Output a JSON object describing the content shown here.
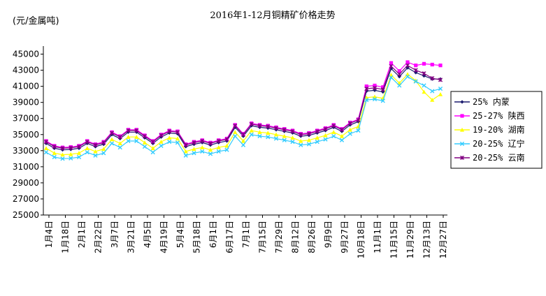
{
  "chart_data": {
    "type": "line",
    "title": "2016年1-12月铜精矿价格走势",
    "unit_label": "(元/金属吨)",
    "ylim": [
      25000,
      46000
    ],
    "yticks": [
      25000,
      27000,
      29000,
      31000,
      33000,
      35000,
      37000,
      39000,
      41000,
      43000,
      45000
    ],
    "ytick_labels": [
      "25000",
      "27000",
      "29000",
      "31000",
      "33000",
      "35000",
      "37000",
      "39000",
      "41000",
      "43000",
      "45000"
    ],
    "grid": false,
    "legend_position": "right",
    "x_tick_labels": [
      "1月4日",
      "1月18日",
      "2月1日",
      "2月22日",
      "3月7日",
      "3月21日",
      "4月5日",
      "4月19日",
      "5月4日",
      "5月18日",
      "6月1日",
      "6月17日",
      "7月1日",
      "7月15日",
      "7月29日",
      "8月12日",
      "8月26日",
      "9月9日",
      "9月27日",
      "10月18日",
      "11月1日",
      "11月15日",
      "11月29日",
      "12月13日",
      "12月27日"
    ],
    "base_values": [
      33900,
      33300,
      33100,
      33150,
      33300,
      33900,
      33500,
      33800,
      35000,
      34500,
      35300,
      35300,
      34600,
      33900,
      34700,
      35200,
      35100,
      33500,
      33800,
      34000,
      33700,
      34000,
      34200,
      35900,
      34800,
      36100,
      35900,
      35800,
      35600,
      35400,
      35200,
      34800,
      34900,
      35200,
      35500,
      35900,
      35400,
      36200,
      36600,
      40400,
      40500,
      40300,
      43200,
      42200,
      43300,
      42700,
      42300,
      41700,
      41500
    ],
    "series": [
      {
        "name": "25% 内蒙",
        "color": "#1a1a6e",
        "marker": "diamond",
        "offset": [
          0,
          0,
          0,
          0,
          0,
          0,
          0,
          0,
          0,
          0,
          0,
          0,
          0,
          0,
          0,
          0,
          0,
          0,
          0,
          0,
          0,
          0,
          0,
          0,
          0,
          0,
          0,
          0,
          0,
          0,
          0,
          0,
          0,
          0,
          0,
          0,
          0,
          0,
          0,
          0,
          0,
          0,
          0,
          0,
          0,
          0,
          0,
          200,
          400
        ]
      },
      {
        "name": "25-27% 陕西",
        "color": "#ff00ff",
        "marker": "square",
        "offset": [
          300,
          300,
          300,
          300,
          300,
          300,
          300,
          300,
          300,
          300,
          300,
          300,
          300,
          300,
          300,
          300,
          300,
          300,
          300,
          300,
          300,
          300,
          300,
          300,
          300,
          300,
          300,
          300,
          300,
          300,
          300,
          300,
          300,
          300,
          300,
          300,
          300,
          300,
          300,
          600,
          600,
          600,
          700,
          700,
          700,
          900,
          1500,
          2000,
          2100
        ]
      },
      {
        "name": "19-20% 湖南",
        "color": "#ffff00",
        "marker": "triangle",
        "offset": [
          -600,
          -600,
          -600,
          -600,
          -600,
          -600,
          -600,
          -600,
          -600,
          -600,
          -600,
          -600,
          -600,
          -600,
          -600,
          -600,
          -600,
          -600,
          -600,
          -600,
          -600,
          -600,
          -600,
          -600,
          -600,
          -600,
          -600,
          -600,
          -600,
          -600,
          -600,
          -600,
          -600,
          -600,
          -600,
          -600,
          -600,
          -600,
          -600,
          -800,
          -800,
          -800,
          -800,
          -800,
          -800,
          -1000,
          -2000,
          -2400,
          -1500
        ]
      },
      {
        "name": "20-25% 辽宁",
        "color": "#33ccff",
        "marker": "x",
        "offset": [
          -1100,
          -1100,
          -1100,
          -1100,
          -1100,
          -1100,
          -1100,
          -1100,
          -1100,
          -1100,
          -1100,
          -1100,
          -1100,
          -1100,
          -1100,
          -1100,
          -1100,
          -1100,
          -1100,
          -1100,
          -1100,
          -1100,
          -1100,
          -1100,
          -1100,
          -1100,
          -1100,
          -1100,
          -1100,
          -1100,
          -1100,
          -1100,
          -1100,
          -1100,
          -1100,
          -1100,
          -1100,
          -1100,
          -1100,
          -1100,
          -1100,
          -1100,
          -1100,
          -1100,
          -1100,
          -1100,
          -1200,
          -1300,
          -800
        ]
      },
      {
        "name": "20-25% 云南",
        "color": "#800080",
        "marker": "star",
        "offset": [
          200,
          200,
          200,
          200,
          200,
          200,
          200,
          200,
          200,
          200,
          200,
          200,
          200,
          200,
          200,
          200,
          200,
          200,
          200,
          200,
          200,
          200,
          200,
          200,
          200,
          200,
          200,
          200,
          200,
          200,
          200,
          200,
          200,
          200,
          200,
          200,
          200,
          200,
          200,
          300,
          300,
          300,
          300,
          300,
          300,
          300,
          300,
          300,
          300
        ]
      }
    ]
  }
}
